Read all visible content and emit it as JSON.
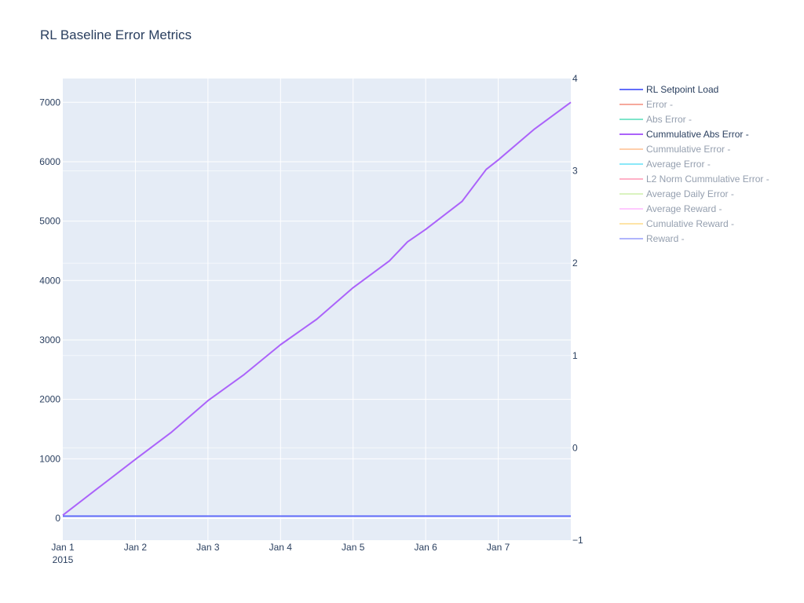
{
  "chart_data": {
    "type": "line",
    "title": "RL Baseline Error Metrics",
    "xlabel": "",
    "ylabel": "",
    "x_ticks": [
      "Jan 1",
      "Jan 2",
      "Jan 3",
      "Jan 4",
      "Jan 5",
      "Jan 6",
      "Jan 7"
    ],
    "x_year_label": "2015",
    "x_range": [
      "2015-01-01",
      "2015-01-08"
    ],
    "y_ticks": [
      0,
      1000,
      2000,
      3000,
      4000,
      5000,
      6000,
      7000
    ],
    "y_range": [
      -370,
      7400
    ],
    "y2_ticks": [
      -1,
      0,
      1,
      2,
      3,
      4
    ],
    "y2_range": [
      -1,
      4
    ],
    "grid": true,
    "legend_position": "right",
    "series": [
      {
        "name": "RL Setpoint Load",
        "color": "#636efa",
        "visible": true,
        "axis": "y",
        "x": [
          "2015-01-01",
          "2015-01-08"
        ],
        "y": [
          35,
          35
        ]
      },
      {
        "name": "Error -",
        "color": "#EF553B",
        "visible": false
      },
      {
        "name": "Abs Error -",
        "color": "#00cc96",
        "visible": false
      },
      {
        "name": "Cummulative Abs Error -",
        "color": "#ab63fa",
        "visible": true,
        "axis": "y",
        "x": [
          "2015-01-01",
          "2015-01-01 12:00",
          "2015-01-02",
          "2015-01-02 12:00",
          "2015-01-03",
          "2015-01-03 12:00",
          "2015-01-04",
          "2015-01-04 12:00",
          "2015-01-05",
          "2015-01-05 12:00",
          "2015-01-05 18:00",
          "2015-01-06",
          "2015-01-06 12:00",
          "2015-01-06 20:00",
          "2015-01-07",
          "2015-01-07 12:00",
          "2015-01-08"
        ],
        "y": [
          50,
          520,
          990,
          1450,
          1980,
          2420,
          2920,
          3350,
          3880,
          4330,
          4650,
          4860,
          5330,
          5870,
          6030,
          6550,
          7000
        ]
      },
      {
        "name": "Cummulative Error -",
        "color": "#FFA15A",
        "visible": false
      },
      {
        "name": "Average Error -",
        "color": "#19d3f3",
        "visible": false
      },
      {
        "name": "L2 Norm Cummulative Error -",
        "color": "#FF6692",
        "visible": false
      },
      {
        "name": "Average Daily Error -",
        "color": "#B6E880",
        "visible": false
      },
      {
        "name": "Average Reward -",
        "color": "#FF97FF",
        "visible": false
      },
      {
        "name": "Cumulative Reward -",
        "color": "#FECB52",
        "visible": false
      },
      {
        "name": "Reward -",
        "color": "#636efa",
        "visible": false
      }
    ]
  }
}
